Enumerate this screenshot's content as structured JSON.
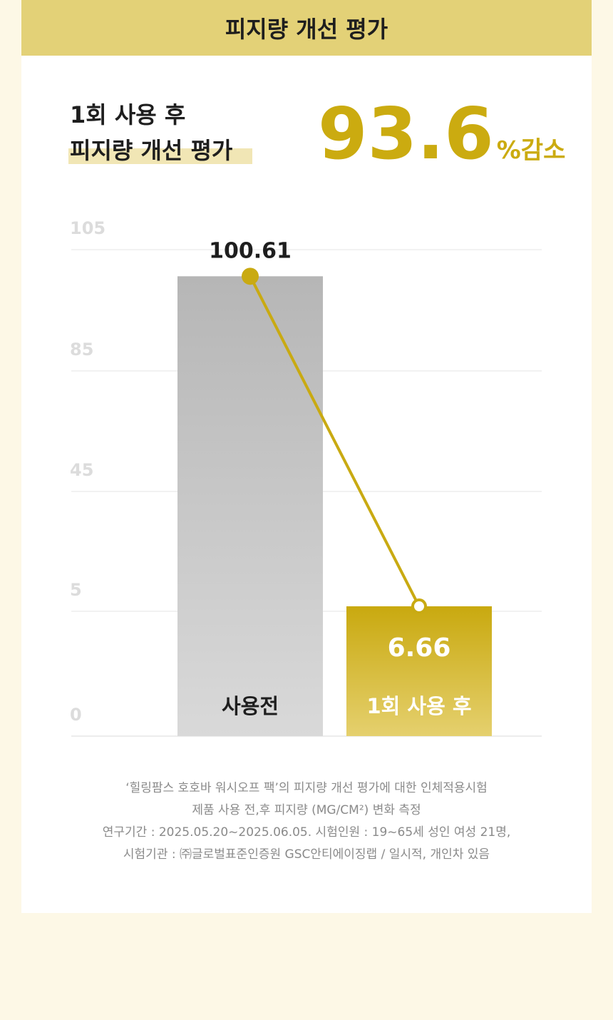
{
  "header": {
    "title": "피지량 개선 평가"
  },
  "headline": {
    "lines": [
      "1회 사용 후",
      "피지량 개선 평가"
    ],
    "value": 93.6,
    "unit": "%감소"
  },
  "chart_data": {
    "type": "bar",
    "categories": [
      "사용전",
      "1회 사용 후"
    ],
    "values": [
      100.61,
      6.66
    ],
    "colors": [
      "#bdbdbd",
      "#cdae17"
    ],
    "line_color": "#c9aa12",
    "connector_line": true,
    "ylim": [
      0,
      105
    ],
    "yticks": [
      0,
      5,
      45,
      85,
      105
    ],
    "grid": true
  },
  "footnote": [
    "‘힐링팜스 호호바 워시오프 팩’의 피지량 개선 평가에 대한 인체적용시험",
    "제품 사용 전,후 피지량 (MG/CM²) 변화 측정",
    "연구기간 : 2025.05.20~2025.06.05. 시험인원 : 19~65세 성인 여성 21명,",
    "시험기관 : ㈜글로벌표준인증원 GSC안티에이징랩 / 일시적, 개인차 있음"
  ]
}
